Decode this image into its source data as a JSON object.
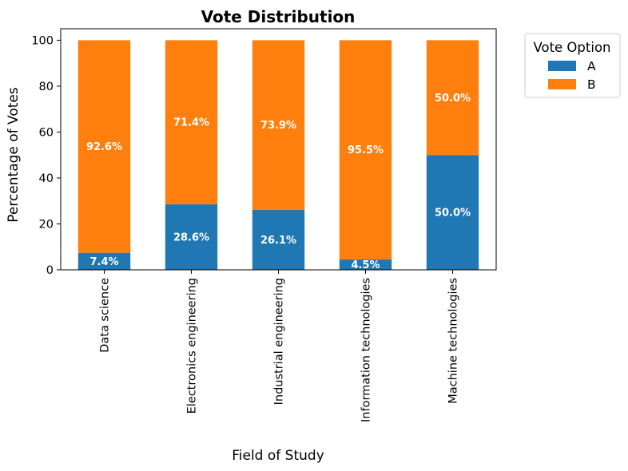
{
  "chart_data": {
    "type": "bar",
    "stacked": true,
    "title": "Vote Distribution",
    "xlabel": "Field of Study",
    "ylabel": "Percentage of Votes",
    "ylim": [
      0,
      105
    ],
    "yticks": [
      0,
      20,
      40,
      60,
      80,
      100
    ],
    "categories": [
      "Data science",
      "Electronics engineering",
      "Industrial engineering",
      "Information technologies",
      "Machine technologies"
    ],
    "series": [
      {
        "name": "A",
        "color": "#1f77b4",
        "values": [
          7.4,
          28.6,
          26.1,
          4.5,
          50.0
        ],
        "labels": [
          "7.4%",
          "28.6%",
          "26.1%",
          "4.5%",
          "50.0%"
        ]
      },
      {
        "name": "B",
        "color": "#ff7f0e",
        "values": [
          92.6,
          71.4,
          73.9,
          95.5,
          50.0
        ],
        "labels": [
          "92.6%",
          "71.4%",
          "73.9%",
          "95.5%",
          "50.0%"
        ]
      }
    ],
    "legend": {
      "title": "Vote Option",
      "placement": "outside-top-right"
    },
    "grid": false
  }
}
